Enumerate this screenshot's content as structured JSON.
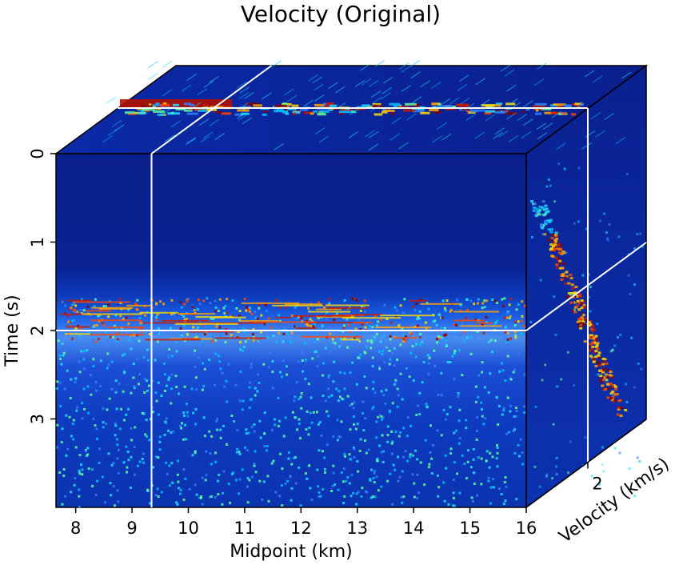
{
  "chart_data": {
    "type": "heatmap",
    "title": "Velocity (Original)",
    "xlabel": "Midpoint (km)",
    "ylabel": "Time (s)",
    "zlabel": "Velocity (km/s)",
    "x_ticks": [
      "8",
      "9",
      "10",
      "11",
      "12",
      "13",
      "14",
      "15",
      "16"
    ],
    "y_ticks": [
      "0",
      "1",
      "2",
      "3"
    ],
    "z_ticks": [
      "2"
    ],
    "xlim": [
      7.65,
      16
    ],
    "ylim": [
      0,
      4
    ],
    "colormap": "jet",
    "slice": {
      "midpoint_km": 9.35,
      "time_s": 2.0,
      "velocity_kms": 2.0
    },
    "colors": {
      "background": "#07208f",
      "slice_line": "#ffffff"
    }
  }
}
